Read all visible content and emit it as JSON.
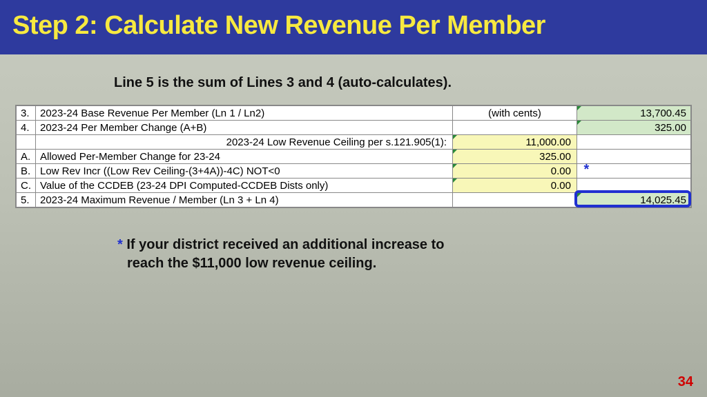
{
  "header": {
    "title": "Step 2: Calculate New Revenue Per Member"
  },
  "subtitle": "Line 5 is the sum of Lines 3 and 4 (auto-calculates).",
  "rows": [
    {
      "num": "3.",
      "label": "2023-24 Base Revenue Per Member (Ln 1 / Ln2)",
      "mid": "(with cents)",
      "val": "13,700.45",
      "mid_align": "center",
      "mid_bg": "",
      "val_bg": "green",
      "tri_mid": false,
      "tri_val": true
    },
    {
      "num": "4.",
      "label": "2023-24 Per Member Change  (A+B)",
      "mid": "",
      "val": "325.00",
      "mid_align": "",
      "mid_bg": "",
      "val_bg": "green",
      "tri_mid": false,
      "tri_val": true
    },
    {
      "num": "",
      "label": "2023-24 Low Revenue Ceiling per s.121.905(1):",
      "label_align": "right",
      "mid": "11,000.00",
      "val": "",
      "mid_align": "right",
      "mid_bg": "yellow",
      "val_bg": "",
      "tri_mid": true,
      "tri_val": false
    },
    {
      "num": "A.",
      "label": "Allowed Per-Member Change for 23-24",
      "mid": "325.00",
      "val": "",
      "mid_align": "right",
      "mid_bg": "yellow",
      "val_bg": "",
      "tri_mid": true,
      "tri_val": false
    },
    {
      "num": "B.",
      "label": "Low Rev Incr ((Low Rev Ceiling-(3+4A))-4C) NOT<0",
      "mid": "0.00",
      "val": "",
      "mid_align": "right",
      "mid_bg": "yellow",
      "val_bg": "",
      "tri_mid": true,
      "tri_val": false,
      "star": true
    },
    {
      "num": "C.",
      "label": "Value of the CCDEB (23-24 DPI Computed-CCDEB Dists only)",
      "mid": "0.00",
      "val": "",
      "mid_align": "right",
      "mid_bg": "yellow",
      "val_bg": "",
      "tri_mid": true,
      "tri_val": false
    },
    {
      "num": "5.",
      "label": "2023-24 Maximum Revenue / Member (Ln 3 + Ln 4)",
      "mid": "",
      "val": "14,025.45",
      "mid_align": "",
      "mid_bg": "",
      "val_bg": "green",
      "tri_mid": false,
      "tri_val": true,
      "highlight": true
    }
  ],
  "footnote": {
    "star": "*",
    "text_line1": " If your district  received an additional increase to",
    "text_line2": "reach the $11,000 low revenue ceiling."
  },
  "page_number": "34",
  "colors": {
    "header_bg": "#2e3a9e",
    "header_fg": "#f7e940",
    "yellow": "#f8f7b8",
    "green": "#d2e8c8",
    "highlight": "#2030d0",
    "pagenum": "#d00000"
  }
}
